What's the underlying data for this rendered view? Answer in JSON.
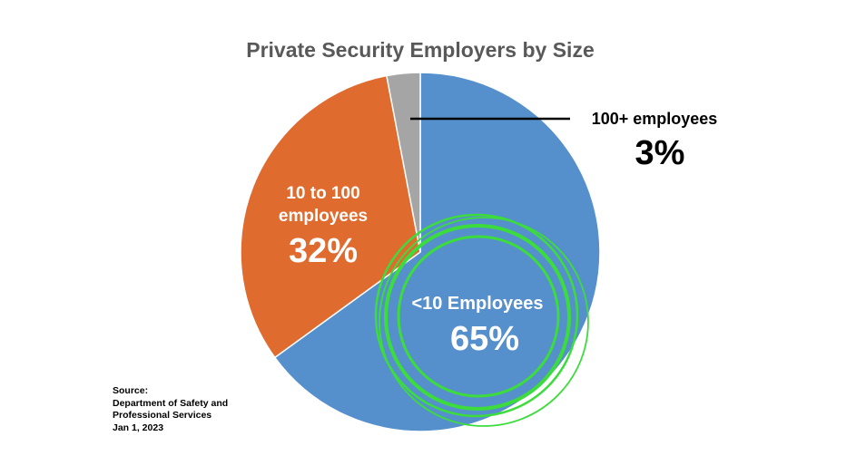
{
  "chart_data": {
    "type": "pie",
    "title": "Private Security Employers by Size",
    "start": "12 o'clock",
    "direction": "clockwise",
    "slices": [
      {
        "label": "<10 Employees",
        "value": 65,
        "value_label": "65%",
        "color": "#5590cc"
      },
      {
        "label_lines": [
          "10 to 100",
          "employees"
        ],
        "value": 32,
        "value_label": "32%",
        "color": "#e06b2e"
      },
      {
        "label": "100+ employees",
        "value": 3,
        "value_label": "3%",
        "color": "#a5a5a5"
      }
    ],
    "highlight": {
      "shape": "concentric circles",
      "color": "#3ddc3d",
      "target": "<10 Employees"
    }
  },
  "source": {
    "lines": [
      "Source:",
      "Department of Safety and",
      "Professional Services",
      "Jan 1, 2023"
    ]
  }
}
